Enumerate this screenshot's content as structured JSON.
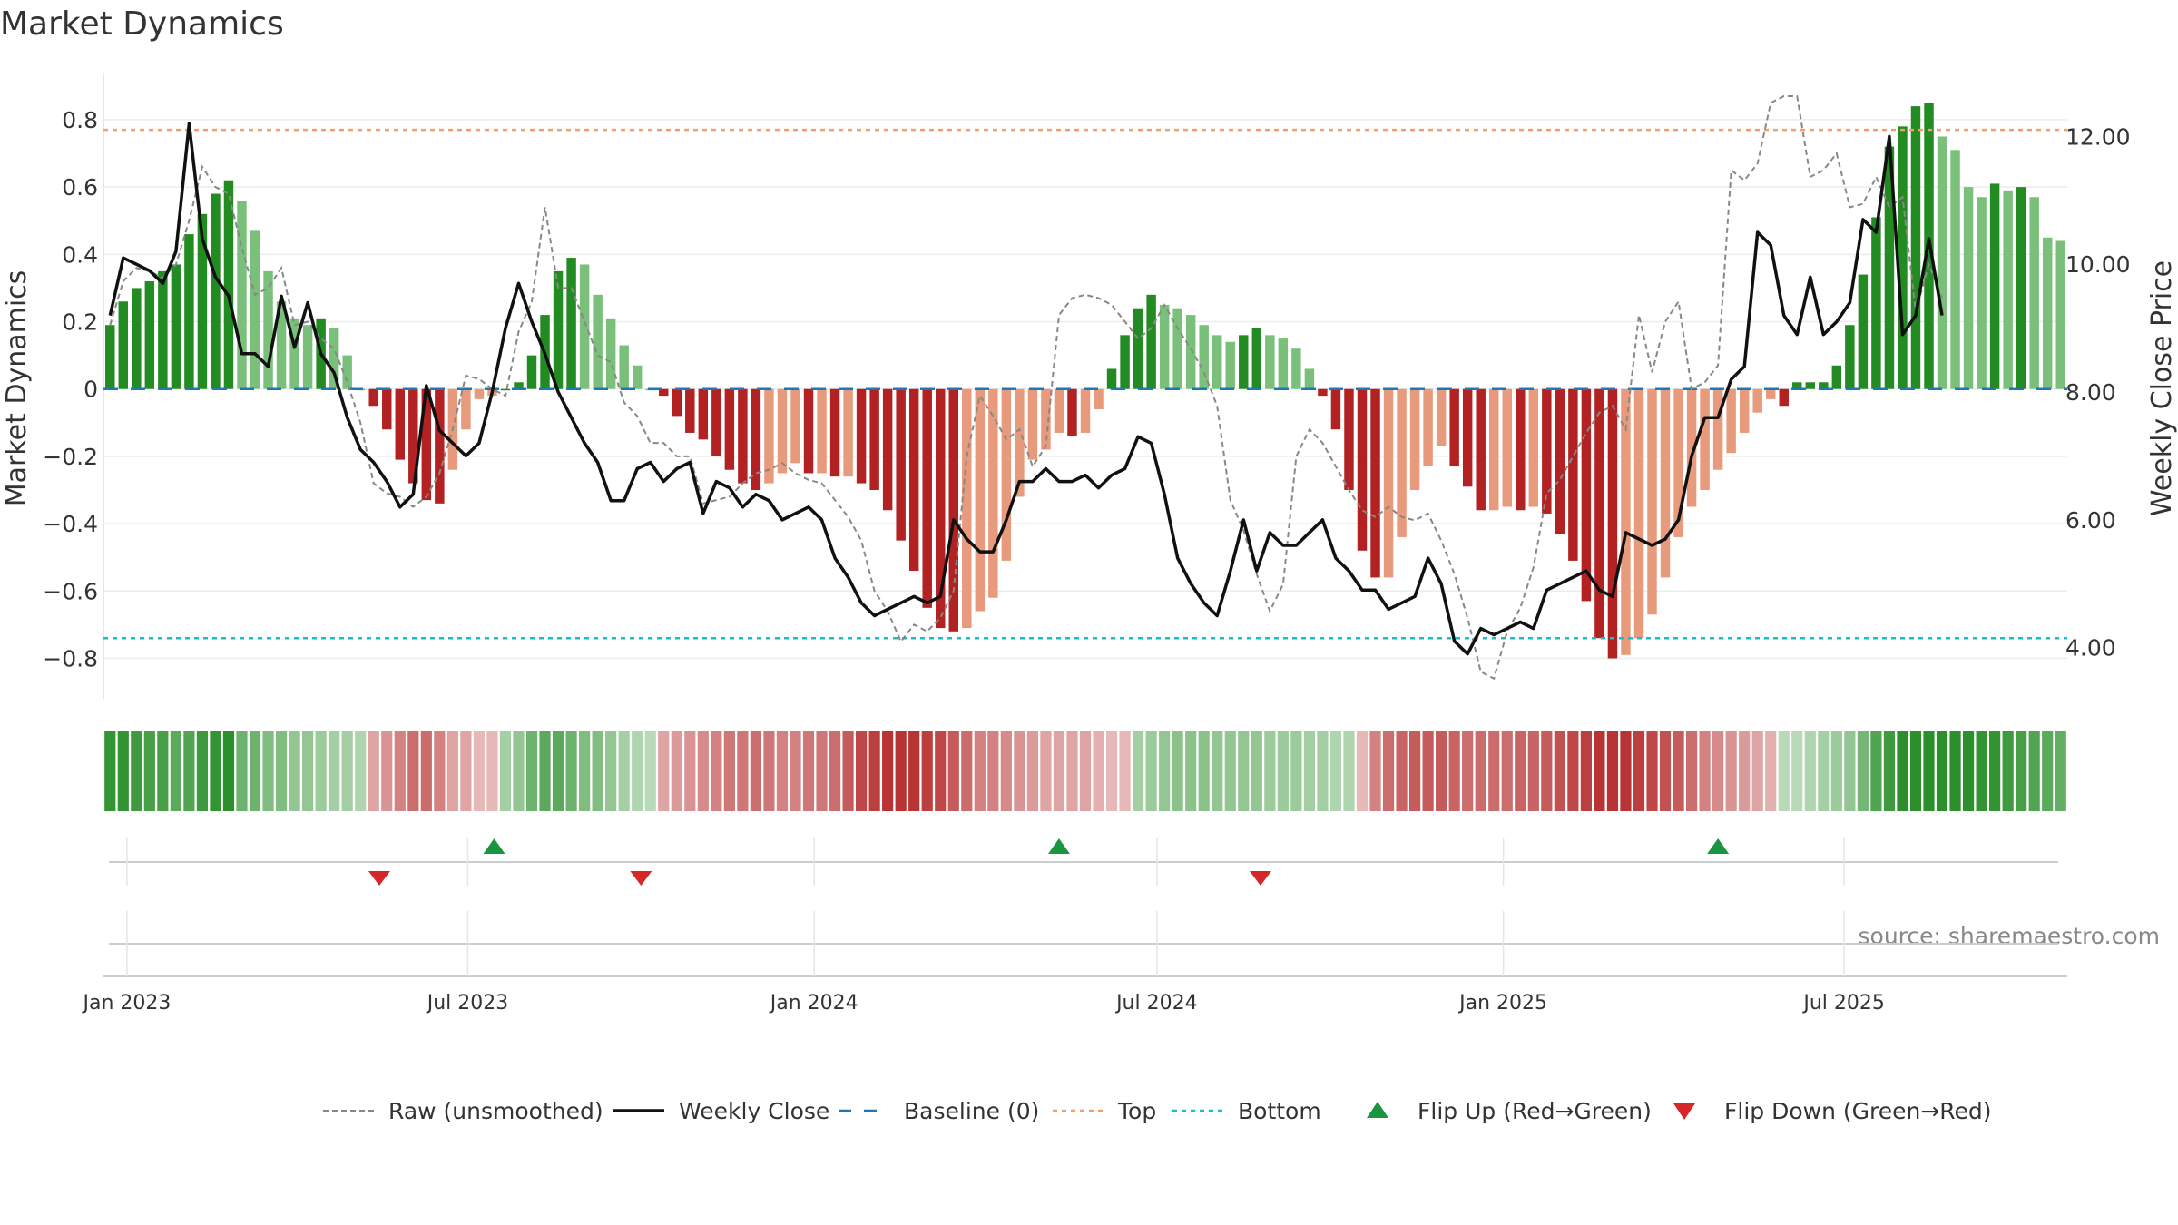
{
  "title": "Market Dynamics",
  "source": "source: sharemaestro.com",
  "chart_data": {
    "type": "bar",
    "x_start": "2022-12-23",
    "x_step_days": 7,
    "x_tick_labels": [
      {
        "date": "2023-01-01",
        "label": "Jan 2023"
      },
      {
        "date": "2023-07-01",
        "label": "Jul 2023"
      },
      {
        "date": "2024-01-01",
        "label": "Jan 2024"
      },
      {
        "date": "2024-07-01",
        "label": "Jul 2024"
      },
      {
        "date": "2025-01-01",
        "label": "Jan 2025"
      },
      {
        "date": "2025-07-01",
        "label": "Jul 2025"
      }
    ],
    "left_axis": {
      "label": "Market Dynamics",
      "ylim": [
        -0.92,
        0.94
      ],
      "ticks": [
        -0.8,
        -0.6,
        -0.4,
        -0.2,
        0,
        0.2,
        0.4,
        0.6,
        0.8
      ],
      "tick_labels": [
        "−0.8",
        "−0.6",
        "−0.4",
        "−0.2",
        "0",
        "0.2",
        "0.4",
        "0.6",
        "0.8"
      ]
    },
    "right_axis": {
      "label": "Weekly Close Price",
      "ylim": [
        3.2,
        13.0
      ],
      "ticks": [
        4,
        6,
        8,
        10,
        12
      ],
      "tick_labels": [
        "4.00",
        "6.00",
        "8.00",
        "10.00",
        "12.00"
      ]
    },
    "top_level": 0.77,
    "bottom_level": -0.74,
    "momentum_bars": [
      0.19,
      0.26,
      0.3,
      0.32,
      0.35,
      0.37,
      0.46,
      0.52,
      0.58,
      0.62,
      0.56,
      0.47,
      0.35,
      0.26,
      0.21,
      0.19,
      0.21,
      0.18,
      0.1,
      0.0,
      -0.05,
      -0.12,
      -0.21,
      -0.28,
      -0.33,
      -0.34,
      -0.24,
      -0.12,
      -0.03,
      -0.02,
      0.0,
      0.02,
      0.1,
      0.22,
      0.35,
      0.39,
      0.37,
      0.28,
      0.21,
      0.13,
      0.07,
      0.0,
      -0.02,
      -0.08,
      -0.13,
      -0.15,
      -0.2,
      -0.24,
      -0.28,
      -0.3,
      -0.28,
      -0.25,
      -0.22,
      -0.25,
      -0.25,
      -0.26,
      -0.26,
      -0.28,
      -0.3,
      -0.36,
      -0.45,
      -0.54,
      -0.65,
      -0.71,
      -0.72,
      -0.71,
      -0.66,
      -0.62,
      -0.51,
      -0.32,
      -0.21,
      -0.18,
      -0.13,
      -0.14,
      -0.13,
      -0.06,
      0.06,
      0.16,
      0.24,
      0.28,
      0.25,
      0.24,
      0.22,
      0.19,
      0.16,
      0.14,
      0.16,
      0.18,
      0.16,
      0.15,
      0.12,
      0.06,
      -0.02,
      -0.12,
      -0.3,
      -0.48,
      -0.56,
      -0.56,
      -0.44,
      -0.3,
      -0.23,
      -0.17,
      -0.23,
      -0.29,
      -0.36,
      -0.36,
      -0.35,
      -0.36,
      -0.35,
      -0.37,
      -0.43,
      -0.51,
      -0.63,
      -0.74,
      -0.8,
      -0.79,
      -0.74,
      -0.67,
      -0.56,
      -0.44,
      -0.35,
      -0.3,
      -0.24,
      -0.19,
      -0.13,
      -0.07,
      -0.03,
      -0.05,
      0.02,
      0.02,
      0.02,
      0.07,
      0.19,
      0.34,
      0.51,
      0.72,
      0.78,
      0.84,
      0.85,
      0.75,
      0.71,
      0.6,
      0.57,
      0.61,
      0.59,
      0.6,
      0.57,
      0.45,
      0.44
    ],
    "momentum_raw": [
      0.19,
      0.32,
      0.36,
      0.35,
      0.33,
      0.37,
      0.5,
      0.66,
      0.6,
      0.58,
      0.42,
      0.28,
      0.3,
      0.36,
      0.19,
      0.2,
      0.15,
      0.12,
      0.02,
      -0.1,
      -0.28,
      -0.31,
      -0.32,
      -0.35,
      -0.32,
      -0.25,
      -0.12,
      0.04,
      0.03,
      0.0,
      -0.02,
      0.17,
      0.26,
      0.54,
      0.3,
      0.3,
      0.2,
      0.1,
      0.08,
      -0.04,
      -0.08,
      -0.16,
      -0.16,
      -0.2,
      -0.2,
      -0.34,
      -0.33,
      -0.32,
      -0.28,
      -0.25,
      -0.24,
      -0.22,
      -0.25,
      -0.27,
      -0.28,
      -0.33,
      -0.38,
      -0.45,
      -0.6,
      -0.66,
      -0.75,
      -0.7,
      -0.72,
      -0.68,
      -0.6,
      -0.2,
      -0.02,
      -0.08,
      -0.15,
      -0.12,
      -0.23,
      -0.17,
      0.22,
      0.27,
      0.28,
      0.27,
      0.25,
      0.2,
      0.15,
      0.18,
      0.25,
      0.18,
      0.12,
      0.05,
      -0.05,
      -0.33,
      -0.42,
      -0.55,
      -0.66,
      -0.58,
      -0.2,
      -0.12,
      -0.16,
      -0.23,
      -0.3,
      -0.36,
      -0.38,
      -0.35,
      -0.38,
      -0.39,
      -0.37,
      -0.45,
      -0.55,
      -0.68,
      -0.84,
      -0.86,
      -0.72,
      -0.65,
      -0.53,
      -0.31,
      -0.27,
      -0.2,
      -0.13,
      -0.07,
      -0.05,
      -0.12,
      0.22,
      0.05,
      0.2,
      0.26,
      0.0,
      0.02,
      0.07,
      0.65,
      0.62,
      0.67,
      0.85,
      0.87,
      0.87,
      0.63,
      0.65,
      0.7,
      0.54,
      0.55,
      0.63,
      0.54,
      0.57,
      0.23,
      0.37,
      0.27
    ],
    "weekly_close": [
      9.2,
      10.1,
      10.0,
      9.9,
      9.7,
      10.2,
      12.2,
      10.4,
      9.8,
      9.5,
      8.6,
      8.6,
      8.4,
      9.5,
      8.7,
      9.4,
      8.6,
      8.3,
      7.6,
      7.1,
      6.9,
      6.6,
      6.2,
      6.4,
      8.1,
      7.4,
      7.2,
      7.0,
      7.2,
      8.0,
      9.0,
      9.7,
      9.1,
      8.6,
      8.0,
      7.6,
      7.2,
      6.9,
      6.3,
      6.3,
      6.8,
      6.9,
      6.6,
      6.8,
      6.9,
      6.1,
      6.6,
      6.5,
      6.2,
      6.4,
      6.3,
      6.0,
      6.1,
      6.2,
      6.0,
      5.4,
      5.1,
      4.7,
      4.5,
      4.6,
      4.7,
      4.8,
      4.7,
      4.8,
      6.0,
      5.7,
      5.5,
      5.5,
      6.0,
      6.6,
      6.6,
      6.8,
      6.6,
      6.6,
      6.7,
      6.5,
      6.7,
      6.8,
      7.3,
      7.2,
      6.4,
      5.4,
      5.0,
      4.7,
      4.5,
      5.2,
      6.0,
      5.2,
      5.8,
      5.6,
      5.6,
      5.8,
      6.0,
      5.4,
      5.2,
      4.9,
      4.9,
      4.6,
      4.7,
      4.8,
      5.4,
      5.0,
      4.1,
      3.9,
      4.3,
      4.2,
      4.3,
      4.4,
      4.3,
      4.9,
      5.0,
      5.1,
      5.2,
      4.9,
      4.8,
      5.8,
      5.7,
      5.6,
      5.7,
      6.0,
      7.0,
      7.6,
      7.6,
      8.2,
      8.4,
      10.5,
      10.3,
      9.2,
      8.9,
      9.8,
      8.9,
      9.1,
      9.4,
      10.7,
      10.5,
      12.0,
      8.9,
      9.2,
      10.4,
      9.2
    ],
    "regime_strip": [
      0.9,
      0.9,
      0.85,
      0.8,
      0.8,
      0.7,
      0.75,
      0.85,
      0.9,
      0.95,
      0.6,
      0.6,
      0.5,
      0.5,
      0.4,
      0.4,
      0.35,
      0.3,
      0.3,
      0.25,
      -0.3,
      -0.4,
      -0.5,
      -0.6,
      -0.6,
      -0.5,
      -0.3,
      -0.3,
      -0.2,
      -0.2,
      0.3,
      0.4,
      0.6,
      0.7,
      0.7,
      0.6,
      0.5,
      0.5,
      0.4,
      0.3,
      0.25,
      0.2,
      -0.3,
      -0.35,
      -0.4,
      -0.45,
      -0.5,
      -0.55,
      -0.55,
      -0.6,
      -0.55,
      -0.5,
      -0.5,
      -0.55,
      -0.55,
      -0.6,
      -0.7,
      -0.8,
      -0.85,
      -0.9,
      -0.9,
      -0.9,
      -0.85,
      -0.8,
      -0.7,
      -0.6,
      -0.5,
      -0.5,
      -0.45,
      -0.4,
      -0.35,
      -0.3,
      -0.3,
      -0.3,
      -0.3,
      -0.25,
      -0.2,
      -0.2,
      0.3,
      0.35,
      0.4,
      0.45,
      0.45,
      0.45,
      0.4,
      0.4,
      0.4,
      0.4,
      0.35,
      0.35,
      0.35,
      0.3,
      0.3,
      0.25,
      0.25,
      -0.2,
      -0.5,
      -0.6,
      -0.65,
      -0.7,
      -0.7,
      -0.7,
      -0.65,
      -0.6,
      -0.6,
      -0.6,
      -0.6,
      -0.65,
      -0.65,
      -0.7,
      -0.75,
      -0.8,
      -0.85,
      -0.9,
      -0.9,
      -0.9,
      -0.85,
      -0.8,
      -0.75,
      -0.7,
      -0.6,
      -0.5,
      -0.45,
      -0.4,
      -0.35,
      -0.3,
      -0.25,
      0.2,
      0.2,
      0.25,
      0.3,
      0.35,
      0.4,
      0.55,
      0.75,
      0.85,
      0.95,
      0.95,
      0.95,
      0.95,
      0.95,
      0.95,
      0.9,
      0.9,
      0.85,
      0.8,
      0.75,
      0.7,
      0.65
    ],
    "flip_up_dates": [
      "2023-07-15",
      "2024-05-10",
      "2025-04-25"
    ],
    "flip_down_dates": [
      "2023-05-15",
      "2023-10-01",
      "2024-08-25"
    ],
    "legend_position": "bottom",
    "legend": [
      {
        "label": "Raw (unsmoothed)",
        "symbol": "dash-gray",
        "color": "#888888"
      },
      {
        "label": "Weekly Close",
        "symbol": "line-black",
        "color": "#111111"
      },
      {
        "label": "Baseline (0)",
        "symbol": "dash-blue",
        "color": "#1f77b4"
      },
      {
        "label": "Top",
        "symbol": "dot-orange",
        "color": "#f0a06a"
      },
      {
        "label": "Bottom",
        "symbol": "dot-cyan",
        "color": "#17becf"
      },
      {
        "label": "Flip Up (Red→Green)",
        "symbol": "triangle-up",
        "color": "#1a9641"
      },
      {
        "label": "Flip Down (Green→Red)",
        "symbol": "triangle-down",
        "color": "#d62728"
      }
    ],
    "colors": {
      "strong_green": "#228b22",
      "light_green": "#7ac07a",
      "strong_red": "#b22222",
      "light_red": "#e89a7c",
      "raw_line": "#888888",
      "close_line": "#111111",
      "baseline": "#1f77b4",
      "top_line": "#f0a06a",
      "bottom_line": "#17becf",
      "flip_up": "#1a9641",
      "flip_down": "#d62728"
    }
  }
}
